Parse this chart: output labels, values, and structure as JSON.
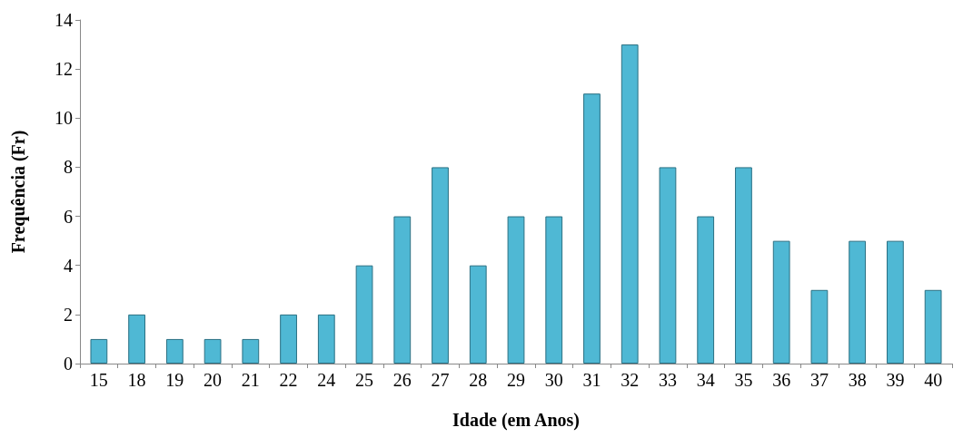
{
  "chart_data": {
    "type": "bar",
    "xlabel": "Idade (em Anos)",
    "ylabel": "Frequência (Fr)",
    "categories": [
      "15",
      "18",
      "19",
      "20",
      "21",
      "22",
      "24",
      "25",
      "26",
      "27",
      "28",
      "29",
      "30",
      "31",
      "32",
      "33",
      "34",
      "35",
      "36",
      "37",
      "38",
      "39",
      "40"
    ],
    "values": [
      1,
      2,
      1,
      1,
      1,
      2,
      2,
      4,
      6,
      8,
      4,
      6,
      6,
      11,
      13,
      8,
      6,
      8,
      5,
      3,
      5,
      5,
      3
    ],
    "color": "#4fb8d4",
    "ylim": [
      0,
      14
    ],
    "yticks": [
      0,
      2,
      4,
      6,
      8,
      10,
      12,
      14
    ],
    "grid": false
  }
}
